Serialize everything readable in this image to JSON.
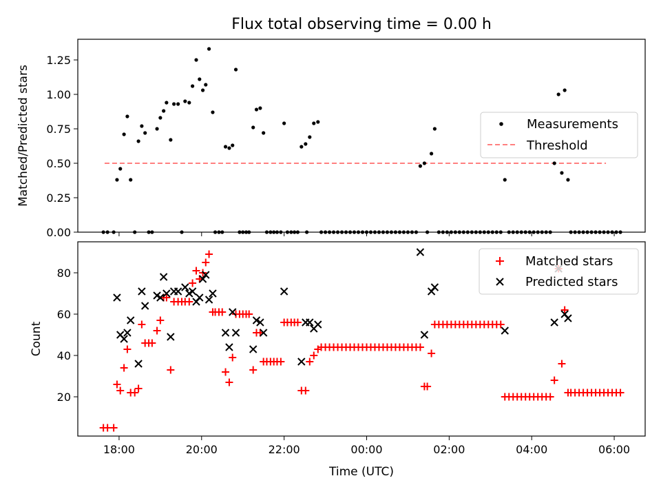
{
  "chart_data": {
    "title": "Flux total observing time = 0.00 h",
    "xlabel": "Time (UTC)",
    "xlim": [
      17.0,
      30.75
    ],
    "x_ticks": [
      18,
      20,
      22,
      24,
      26,
      28,
      30
    ],
    "x_tick_labels": [
      "18:00",
      "20:00",
      "22:00",
      "00:00",
      "02:00",
      "04:00",
      "06:00"
    ],
    "top": {
      "type": "scatter",
      "ylabel": "Matched/Predicted stars",
      "ylim": [
        0,
        1.4
      ],
      "y_ticks": [
        0,
        0.25,
        0.5,
        0.75,
        1.0,
        1.25
      ],
      "y_tick_labels": [
        "0.00",
        "0.25",
        "0.50",
        "0.75",
        "1.00",
        "1.25"
      ],
      "threshold": {
        "value": 0.5,
        "x_range": [
          17.65,
          29.8
        ],
        "color": "#ff7f7f"
      },
      "legend": {
        "position": "center-right",
        "measurements_label": "Measurements",
        "threshold_label": "Threshold"
      },
      "measurements": [
        [
          17.62,
          0
        ],
        [
          17.72,
          0
        ],
        [
          17.87,
          0
        ],
        [
          17.95,
          0.38
        ],
        [
          18.03,
          0.46
        ],
        [
          18.12,
          0.71
        ],
        [
          18.2,
          0.84
        ],
        [
          18.28,
          0.38
        ],
        [
          18.38,
          0
        ],
        [
          18.47,
          0.66
        ],
        [
          18.55,
          0.77
        ],
        [
          18.63,
          0.72
        ],
        [
          18.72,
          0
        ],
        [
          18.8,
          0
        ],
        [
          18.92,
          0.75
        ],
        [
          19.0,
          0.83
        ],
        [
          19.08,
          0.88
        ],
        [
          19.15,
          0.94
        ],
        [
          19.25,
          0.67
        ],
        [
          19.33,
          0.93
        ],
        [
          19.43,
          0.93
        ],
        [
          19.52,
          0
        ],
        [
          19.6,
          0.95
        ],
        [
          19.7,
          0.94
        ],
        [
          19.78,
          1.06
        ],
        [
          19.87,
          1.25
        ],
        [
          19.95,
          1.11
        ],
        [
          20.03,
          1.03
        ],
        [
          20.1,
          1.07
        ],
        [
          20.18,
          1.33
        ],
        [
          20.27,
          0.87
        ],
        [
          20.33,
          0
        ],
        [
          20.42,
          0
        ],
        [
          20.5,
          0
        ],
        [
          20.58,
          0.62
        ],
        [
          20.67,
          0.61
        ],
        [
          20.75,
          0.63
        ],
        [
          20.83,
          1.18
        ],
        [
          20.92,
          0
        ],
        [
          21.0,
          0
        ],
        [
          21.08,
          0
        ],
        [
          21.15,
          0
        ],
        [
          21.25,
          0.76
        ],
        [
          21.33,
          0.89
        ],
        [
          21.42,
          0.9
        ],
        [
          21.5,
          0.72
        ],
        [
          21.58,
          0
        ],
        [
          21.67,
          0
        ],
        [
          21.75,
          0
        ],
        [
          21.83,
          0
        ],
        [
          21.92,
          0
        ],
        [
          22.0,
          0.79
        ],
        [
          22.08,
          0
        ],
        [
          22.17,
          0
        ],
        [
          22.25,
          0
        ],
        [
          22.33,
          0
        ],
        [
          22.42,
          0.62
        ],
        [
          22.52,
          0.64
        ],
        [
          22.62,
          0.69
        ],
        [
          22.72,
          0.79
        ],
        [
          22.82,
          0.8
        ],
        [
          22.55,
          0
        ],
        [
          22.9,
          0
        ],
        [
          23.0,
          0
        ],
        [
          23.1,
          0
        ],
        [
          23.2,
          0
        ],
        [
          23.3,
          0
        ],
        [
          23.4,
          0
        ],
        [
          23.5,
          0
        ],
        [
          23.6,
          0
        ],
        [
          23.7,
          0
        ],
        [
          23.8,
          0
        ],
        [
          23.9,
          0
        ],
        [
          24.0,
          0
        ],
        [
          24.1,
          0
        ],
        [
          24.2,
          0
        ],
        [
          24.3,
          0
        ],
        [
          24.4,
          0
        ],
        [
          24.5,
          0
        ],
        [
          24.6,
          0
        ],
        [
          24.7,
          0
        ],
        [
          24.8,
          0
        ],
        [
          24.9,
          0
        ],
        [
          25.0,
          0
        ],
        [
          25.1,
          0
        ],
        [
          25.2,
          0
        ],
        [
          25.3,
          0.48
        ],
        [
          25.4,
          0.5
        ],
        [
          25.47,
          0
        ],
        [
          25.57,
          0.57
        ],
        [
          25.65,
          0.75
        ],
        [
          25.75,
          0
        ],
        [
          25.85,
          0
        ],
        [
          25.95,
          0
        ],
        [
          26.05,
          0
        ],
        [
          26.15,
          0
        ],
        [
          26.25,
          0
        ],
        [
          26.35,
          0
        ],
        [
          26.45,
          0
        ],
        [
          26.55,
          0
        ],
        [
          26.65,
          0
        ],
        [
          26.75,
          0
        ],
        [
          26.85,
          0
        ],
        [
          26.95,
          0
        ],
        [
          27.05,
          0
        ],
        [
          27.15,
          0
        ],
        [
          27.25,
          0
        ],
        [
          27.35,
          0.38
        ],
        [
          27.45,
          0
        ],
        [
          27.55,
          0
        ],
        [
          27.65,
          0
        ],
        [
          27.75,
          0
        ],
        [
          27.85,
          0
        ],
        [
          27.95,
          0
        ],
        [
          28.05,
          0
        ],
        [
          28.15,
          0
        ],
        [
          28.25,
          0
        ],
        [
          28.35,
          0
        ],
        [
          28.45,
          0
        ],
        [
          28.55,
          0.5
        ],
        [
          28.65,
          1.0
        ],
        [
          28.73,
          0.43
        ],
        [
          28.8,
          1.03
        ],
        [
          28.88,
          0.38
        ],
        [
          28.95,
          0
        ],
        [
          29.05,
          0
        ],
        [
          29.15,
          0
        ],
        [
          29.25,
          0
        ],
        [
          29.35,
          0
        ],
        [
          29.45,
          0
        ],
        [
          29.55,
          0
        ],
        [
          29.65,
          0
        ],
        [
          29.75,
          0
        ],
        [
          29.85,
          0
        ],
        [
          29.95,
          0
        ],
        [
          30.05,
          0
        ],
        [
          30.15,
          0
        ]
      ]
    },
    "bottom": {
      "type": "scatter",
      "ylabel": "Count",
      "ylim": [
        1,
        95
      ],
      "y_ticks": [
        20,
        40,
        60,
        80
      ],
      "y_tick_labels": [
        "20",
        "40",
        "60",
        "80"
      ],
      "legend": {
        "position": "top-right",
        "matched_label": "Matched stars",
        "predicted_label": "Predicted stars"
      },
      "matched": [
        [
          17.62,
          5
        ],
        [
          17.72,
          5
        ],
        [
          17.87,
          5
        ],
        [
          17.95,
          26
        ],
        [
          18.03,
          23
        ],
        [
          18.12,
          34
        ],
        [
          18.2,
          43
        ],
        [
          18.28,
          22
        ],
        [
          18.38,
          22
        ],
        [
          18.47,
          24
        ],
        [
          18.55,
          55
        ],
        [
          18.63,
          46
        ],
        [
          18.72,
          46
        ],
        [
          18.8,
          46
        ],
        [
          18.92,
          52
        ],
        [
          19.0,
          57
        ],
        [
          19.08,
          68
        ],
        [
          19.15,
          68
        ],
        [
          19.25,
          33
        ],
        [
          19.33,
          66
        ],
        [
          19.43,
          66
        ],
        [
          19.52,
          66
        ],
        [
          19.6,
          66
        ],
        [
          19.7,
          66
        ],
        [
          19.78,
          75
        ],
        [
          19.87,
          81
        ],
        [
          19.95,
          77
        ],
        [
          20.03,
          80
        ],
        [
          20.1,
          85
        ],
        [
          20.18,
          89
        ],
        [
          20.27,
          61
        ],
        [
          20.33,
          61
        ],
        [
          20.42,
          61
        ],
        [
          20.5,
          61
        ],
        [
          20.58,
          32
        ],
        [
          20.67,
          27
        ],
        [
          20.75,
          39
        ],
        [
          20.83,
          60
        ],
        [
          20.92,
          60
        ],
        [
          21.0,
          60
        ],
        [
          21.08,
          60
        ],
        [
          21.15,
          60
        ],
        [
          21.25,
          33
        ],
        [
          21.33,
          51
        ],
        [
          21.42,
          51
        ],
        [
          21.5,
          37
        ],
        [
          21.58,
          37
        ],
        [
          21.67,
          37
        ],
        [
          21.75,
          37
        ],
        [
          21.83,
          37
        ],
        [
          21.92,
          37
        ],
        [
          22.0,
          56
        ],
        [
          22.08,
          56
        ],
        [
          22.17,
          56
        ],
        [
          22.25,
          56
        ],
        [
          22.33,
          56
        ],
        [
          22.42,
          23
        ],
        [
          22.52,
          23
        ],
        [
          22.62,
          37
        ],
        [
          22.72,
          40
        ],
        [
          22.82,
          43
        ],
        [
          22.9,
          44
        ],
        [
          23.0,
          44
        ],
        [
          23.1,
          44
        ],
        [
          23.2,
          44
        ],
        [
          23.3,
          44
        ],
        [
          23.4,
          44
        ],
        [
          23.5,
          44
        ],
        [
          23.6,
          44
        ],
        [
          23.7,
          44
        ],
        [
          23.8,
          44
        ],
        [
          23.9,
          44
        ],
        [
          24.0,
          44
        ],
        [
          24.1,
          44
        ],
        [
          24.2,
          44
        ],
        [
          24.3,
          44
        ],
        [
          24.4,
          44
        ],
        [
          24.5,
          44
        ],
        [
          24.6,
          44
        ],
        [
          24.7,
          44
        ],
        [
          24.8,
          44
        ],
        [
          24.9,
          44
        ],
        [
          25.0,
          44
        ],
        [
          25.1,
          44
        ],
        [
          25.2,
          44
        ],
        [
          25.3,
          44
        ],
        [
          25.4,
          25
        ],
        [
          25.47,
          25
        ],
        [
          25.57,
          41
        ],
        [
          25.65,
          55
        ],
        [
          25.75,
          55
        ],
        [
          25.85,
          55
        ],
        [
          25.95,
          55
        ],
        [
          26.05,
          55
        ],
        [
          26.15,
          55
        ],
        [
          26.25,
          55
        ],
        [
          26.35,
          55
        ],
        [
          26.45,
          55
        ],
        [
          26.55,
          55
        ],
        [
          26.65,
          55
        ],
        [
          26.75,
          55
        ],
        [
          26.85,
          55
        ],
        [
          26.95,
          55
        ],
        [
          27.05,
          55
        ],
        [
          27.15,
          55
        ],
        [
          27.25,
          55
        ],
        [
          27.35,
          20
        ],
        [
          27.45,
          20
        ],
        [
          27.55,
          20
        ],
        [
          27.65,
          20
        ],
        [
          27.75,
          20
        ],
        [
          27.85,
          20
        ],
        [
          27.95,
          20
        ],
        [
          28.05,
          20
        ],
        [
          28.15,
          20
        ],
        [
          28.25,
          20
        ],
        [
          28.35,
          20
        ],
        [
          28.45,
          20
        ],
        [
          28.55,
          28
        ],
        [
          28.65,
          82
        ],
        [
          28.73,
          36
        ],
        [
          28.8,
          62
        ],
        [
          28.88,
          22
        ],
        [
          28.95,
          22
        ],
        [
          29.05,
          22
        ],
        [
          29.15,
          22
        ],
        [
          29.25,
          22
        ],
        [
          29.35,
          22
        ],
        [
          29.45,
          22
        ],
        [
          29.55,
          22
        ],
        [
          29.65,
          22
        ],
        [
          29.75,
          22
        ],
        [
          29.85,
          22
        ],
        [
          29.95,
          22
        ],
        [
          30.05,
          22
        ],
        [
          30.15,
          22
        ]
      ],
      "predicted": [
        [
          17.95,
          68
        ],
        [
          18.03,
          50
        ],
        [
          18.12,
          48
        ],
        [
          18.2,
          51
        ],
        [
          18.28,
          57
        ],
        [
          18.47,
          36
        ],
        [
          18.55,
          71
        ],
        [
          18.63,
          64
        ],
        [
          18.92,
          69
        ],
        [
          19.0,
          68
        ],
        [
          19.08,
          78
        ],
        [
          19.15,
          70
        ],
        [
          19.25,
          49
        ],
        [
          19.33,
          71
        ],
        [
          19.43,
          71
        ],
        [
          19.6,
          73
        ],
        [
          19.7,
          70
        ],
        [
          19.78,
          71
        ],
        [
          19.87,
          66
        ],
        [
          19.95,
          68
        ],
        [
          20.03,
          77
        ],
        [
          20.1,
          79
        ],
        [
          20.18,
          67
        ],
        [
          20.27,
          70
        ],
        [
          20.58,
          51
        ],
        [
          20.67,
          44
        ],
        [
          20.75,
          61
        ],
        [
          20.83,
          51
        ],
        [
          21.25,
          43
        ],
        [
          21.33,
          57
        ],
        [
          21.42,
          56
        ],
        [
          21.5,
          51
        ],
        [
          22.0,
          71
        ],
        [
          22.42,
          37
        ],
        [
          22.52,
          56
        ],
        [
          22.62,
          56
        ],
        [
          22.72,
          53
        ],
        [
          22.82,
          55
        ],
        [
          25.3,
          90
        ],
        [
          25.4,
          50
        ],
        [
          25.57,
          71
        ],
        [
          25.65,
          73
        ],
        [
          27.35,
          52
        ],
        [
          28.55,
          56
        ],
        [
          28.65,
          82
        ],
        [
          28.8,
          60
        ],
        [
          28.88,
          58
        ]
      ]
    }
  }
}
